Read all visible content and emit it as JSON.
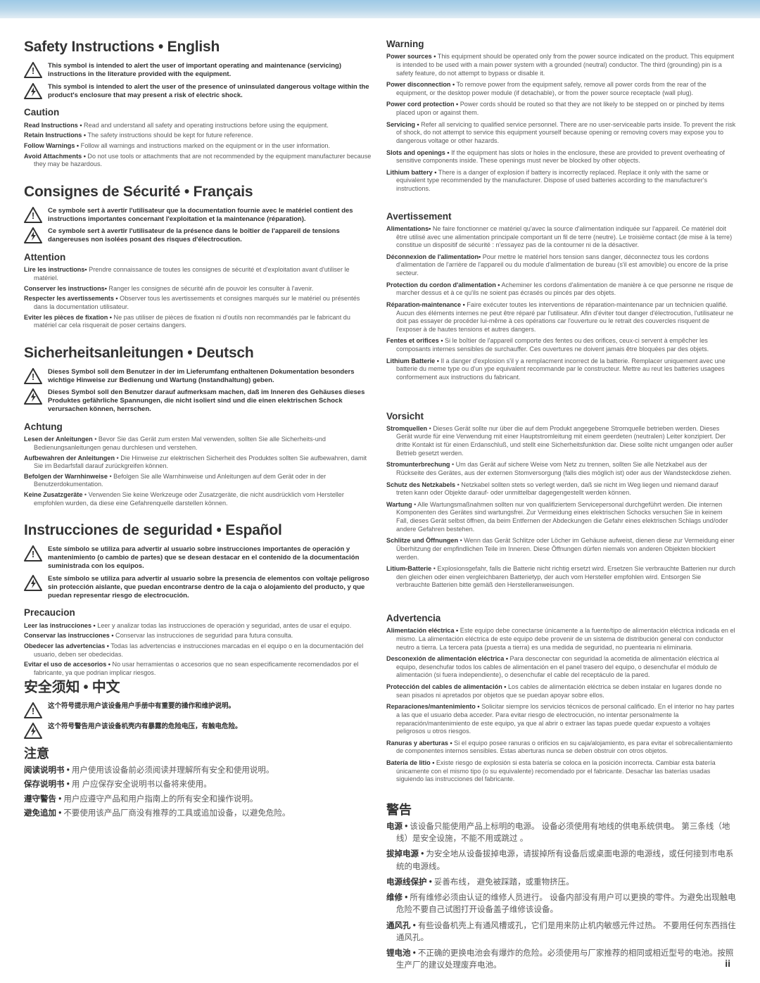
{
  "page_number": "ii",
  "left": {
    "sections": [
      {
        "heading": "Safety Instructions • English",
        "symbols": [
          "This symbol is intended to alert the user of important operating and maintenance (servicing) instructions in the literature provided with the equipment.",
          "This symbol is intended to alert the user of the presence of uninsulated dangerous voltage within the product's enclosure that may present a risk of electric shock."
        ],
        "sub": "Caution",
        "items": [
          {
            "b": "Read Instructions •",
            "t": " Read and understand all safety and operating instructions before using the equipment."
          },
          {
            "b": "Retain Instructions •",
            "t": " The safety instructions should be kept for future reference."
          },
          {
            "b": "Follow Warnings •",
            "t": " Follow all warnings and instructions marked on the equipment or in the user information."
          },
          {
            "b": "Avoid Attachments •",
            "t": " Do not use tools or attachments that are not recommended by the equipment manufacturer because they may be hazardous."
          }
        ]
      },
      {
        "heading": "Consignes de Sécurité • Français",
        "symbols": [
          "Ce symbole sert à avertir l'utilisateur que la documentation fournie avec le matériel contient des instructions importantes concernant l'exploitation et la maintenance (réparation).",
          "Ce symbole sert à avertir l'utilisateur de la présence dans le boîtier de l'appareil de  tensions dangereuses non isolées posant des risques d'électrocution."
        ],
        "sub": "Attention",
        "items": [
          {
            "b": "Lire les instructions•",
            "t": " Prendre connaissance de toutes les consignes de sécurité et d'exploitation avant d'utiliser le matériel."
          },
          {
            "b": "Conserver les instructions•",
            "t": " Ranger les consignes de sécurité afin de pouvoir les consulter à l'avenir."
          },
          {
            "b": "Respecter les avertissements •",
            "t": " Observer tous les avertissements et consignes marqués sur le matériel ou présentés dans la documentation utilisateur."
          },
          {
            "b": "Eviter les pièces de fixation •",
            "t": " Ne pas utiliser de pièces de fixation ni d'outils non recommandés par le fabricant du matériel car cela risquerait de poser certains dangers."
          }
        ]
      },
      {
        "heading": "Sicherheitsanleitungen • Deutsch",
        "symbols": [
          "Dieses Symbol soll dem Benutzer in der im Lieferumfang enthaltenen Dokumentation besonders wichtige Hinweise zur Bedienung und Wartung (Instandhaltung) geben.",
          "Dieses Symbol soll den Benutzer darauf aufmerksam machen, daß im Inneren des Gehäuses dieses Produktes gefährliche Spannungen, die nicht isoliert sind und die einen elektrischen Schock verursachen können, herrschen."
        ],
        "sub": "Achtung",
        "items": [
          {
            "b": "Lesen der Anleitungen",
            "t": " • Bevor Sie das Gerät zum ersten Mal verwenden, sollten Sie alle Sicherheits-und Bedienungsanleitungen genau durchlesen und verstehen."
          },
          {
            "b": "Aufbewahren der Anleitungen",
            "t": " • Die Hinweise zur elektrischen Sicherheit des Produktes sollten Sie aufbewahren, damit Sie im Bedarfsfall darauf zurückgreifen können."
          },
          {
            "b": "Befolgen der Warnhinweise",
            "t": " • Befolgen Sie alle Warnhinweise und Anleitungen auf dem Gerät oder in der Benutzerdokumentation."
          },
          {
            "b": "Keine Zusatzgeräte",
            "t": " • Verwenden Sie keine Werkzeuge oder Zusatzgeräte, die nicht ausdrücklich vom Hersteller empfohlen wurden, da diese eine Gefahrenquelle darstellen können."
          }
        ]
      },
      {
        "heading": "Instrucciones de seguridad • Español",
        "symbols": [
          "Este símbolo se utiliza para advertir al usuario sobre instrucciones importantes de operación y mantenimiento (o cambio de partes) que se desean destacar en el contenido de la documentación suministrada con los equipos.",
          "Este símbolo se utiliza para advertir al usuario sobre la presencia de elementos con voltaje peligroso sin protección aislante, que puedan encontrarse dentro de la caja o alojamiento del producto, y que puedan representar riesgo de electrocución."
        ],
        "sub": "Precaucion",
        "items": [
          {
            "b": "Leer las instrucciones •",
            "t": " Leer y analizar todas las instrucciones de operación y seguridad, antes de usar el equipo."
          },
          {
            "b": "Conservar las instrucciones •",
            "t": " Conservar las instrucciones de seguridad para futura consulta."
          },
          {
            "b": "Obedecer las advertencias •",
            "t": " Todas las advertencias e instrucciones marcadas en el equipo o en la documentación del usuario, deben ser obedecidas."
          },
          {
            "b": "Evitar el uso de accesorios •",
            "t": " No usar herramientas o accesorios que no sean especificamente recomendados por el fabricante, ya que podrian implicar riesgos."
          }
        ]
      }
    ],
    "cn": {
      "heading": "安全须知 • 中文",
      "symbols": [
        "这个符号提示用户该设备用户手册中有重要的操作和维护说明。",
        "这个符号警告用户该设备机壳内有暴露的危险电压，有触电危险。"
      ],
      "sub": "注意",
      "items": [
        {
          "b": "阅读说明书 •",
          "t": "  用户使用该设备前必须阅读并理解所有安全和使用说明。"
        },
        {
          "b": "保存说明书 •",
          "t": "  用  户应保存安全说明书以备将来使用。"
        },
        {
          "b": "遵守警告 •",
          "t": "  用户应遵守产品和用户指南上的所有安全和操作说明。"
        },
        {
          "b": "避免追加 •",
          "t": "  不要使用该产品厂商没有推荐的工具或追加设备，以避免危险。"
        }
      ]
    }
  },
  "right": {
    "sections": [
      {
        "sub": "Warning",
        "items": [
          {
            "b": "Power sources •",
            "t": " This equipment should be operated only from the power source indicated on the product. This equipment is intended to be used with a main power system with a grounded (neutral) conductor. The third (grounding) pin is a safety feature, do not attempt to bypass or disable it."
          },
          {
            "b": "Power disconnection •",
            "t": " To remove power from the equipment safely, remove all power cords from the rear of the equipment, or the desktop power module (if detachable), or from the power source receptacle (wall plug)."
          },
          {
            "b": "Power cord protection •",
            "t": " Power cords should be routed so that they are not likely to be stepped on or pinched by items placed upon or against them."
          },
          {
            "b": "Servicing •",
            "t": " Refer all servicing to qualified service personnel. There are no user-serviceable parts inside. To prevent the risk of shock, do not attempt to service this equipment yourself because opening or removing covers may expose you to dangerous voltage or other hazards."
          },
          {
            "b": "Slots and openings •",
            "t": " If the equipment has slots or holes in the enclosure, these are provided to prevent overheating of sensitive components inside. These openings must never be blocked by other objects."
          },
          {
            "b": "Lithium battery •",
            "t": " There is a danger of explosion if battery is incorrectly replaced. Replace it only with the same or equivalent type recommended by the manufacturer. Dispose of used batteries according to the manufacturer's instructions."
          }
        ]
      },
      {
        "sub": "Avertissement",
        "items": [
          {
            "b": "Alimentations•",
            "t": " Ne faire fonctionner ce matériel qu'avec la source d'alimentation indiquée sur l'appareil. Ce matériel doit être utilisé avec une alimentation principale comportant un fil de terre (neutre). Le troisième contact (de mise à la terre) constitue un dispositif de sécurité : n'essayez pas de la contourner ni de la désactiver."
          },
          {
            "b": "Déconnexion de l'alimentation•",
            "t": " Pour mettre le matériel hors tension sans danger, déconnectez tous les cordons d'alimentation de l'arrière de l'appareil ou du module d'alimentation de bureau (s'il est amovible) ou encore de la prise secteur."
          },
          {
            "b": "Protection du cordon d'alimentation •",
            "t": " Acheminer les cordons d'alimentation de manière à ce que personne ne risque de marcher dessus et à ce qu'ils ne soient pas écrasés ou pincés par des objets."
          },
          {
            "b": "Réparation-maintenance •",
            "t": " Faire exécuter toutes les interventions de réparation-maintenance par un technicien qualifié. Aucun des éléments internes ne peut être réparé par l'utilisateur. Afin d'éviter tout danger d'électrocution, l'utilisateur ne doit pas essayer de procéder lui-même à ces opérations car l'ouverture ou le retrait des couvercles risquent de l'exposer à de hautes tensions et autres dangers."
          },
          {
            "b": "Fentes et orifices •",
            "t": " Si le boîtier de l'appareil comporte des fentes ou des orifices, ceux-ci servent à empêcher les composants internes sensibles de surchauffer. Ces ouvertures ne doivent jamais être bloquées par des objets."
          },
          {
            "b": "Lithium Batterie •",
            "t": " Il a danger d'explosion s'il y a remplacment incorrect de la batterie. Remplacer uniquement avec une batterie du meme type ou d'un ype equivalent recommande par le constructeur. Mettre au reut les batteries usagees conformement aux instructions du fabricant."
          }
        ]
      },
      {
        "sub": "Vorsicht",
        "items": [
          {
            "b": "Stromquellen",
            "t": " • Dieses Gerät sollte nur über die auf dem Produkt angegebene Stromquelle betrieben werden. Dieses Gerät wurde für eine Verwendung mit einer Hauptstromleitung mit einem geerdeten (neutralen) Leiter konzipiert. Der dritte Kontakt ist für einen Erdanschluß, und stellt eine Sicherheitsfunktion dar. Diese sollte nicht umgangen oder außer Betrieb gesetzt werden."
          },
          {
            "b": "Stromunterbrechung",
            "t": " • Um das Gerät auf sichere Weise vom Netz zu trennen, sollten Sie alle Netzkabel aus der Rückseite des Gerätes, aus der externen Stomversorgung (falls dies möglich ist) oder aus der Wandsteckdose ziehen."
          },
          {
            "b": "Schutz des Netzkabels",
            "t": " • Netzkabel sollten stets so verlegt werden, daß sie nicht im Weg liegen und niemand darauf treten kann oder Objekte darauf- oder unmittelbar dagegengestellt werden können."
          },
          {
            "b": "Wartung",
            "t": " • Alle Wartungsmaßnahmen sollten nur von qualifiziertem Servicepersonal durchgeführt werden. Die internen Komponenten des Gerätes sind wartungsfrei. Zur Vermeidung eines elektrischen Schocks versuchen Sie in keinem Fall, dieses Gerät selbst öffnen, da beim Entfernen der Abdeckungen die Gefahr eines elektrischen Schlags und/oder andere Gefahren bestehen."
          },
          {
            "b": "Schlitze und Öffnungen",
            "t": " • Wenn das Gerät Schlitze oder Löcher im Gehäuse aufweist, dienen diese zur Vermeidung einer Überhitzung der empfindlichen Teile im Inneren. Diese Öffnungen dürfen niemals von anderen Objekten blockiert werden."
          },
          {
            "b": "Litium-Batterie",
            "t": " • Explosionsgefahr, falls die Batterie nicht richtig ersetzt wird. Ersetzen Sie verbrauchte Batterien nur durch den gleichen oder einen vergleichbaren Batterietyp, der auch vom Hersteller empfohlen wird. Entsorgen Sie verbrauchte Batterien bitte gemäß den Herstelleranweisungen."
          }
        ]
      },
      {
        "sub": "Advertencia",
        "items": [
          {
            "b": "Alimentación eléctrica •",
            "t": " Este equipo debe conectarse únicamente a la fuente/tipo de alimentación eléctrica indicada en el mismo. La alimentación eléctrica de este equipo debe provenir de un sistema de distribución general con conductor neutro a tierra. La tercera pata (puesta a tierra) es una medida de seguridad, no puentearia ni eliminaria."
          },
          {
            "b": "Desconexión de alimentación eléctrica •",
            "t": " Para desconectar con seguridad la acometida de alimentación eléctrica al equipo, desenchufar todos los cables de alimentación en el panel trasero del equipo, o desenchufar el módulo de alimentación (si fuera independiente), o desenchufar el cable del receptáculo de la pared."
          },
          {
            "b": "Protección del cables de alimentación •",
            "t": " Los cables de alimentación eléctrica se deben instalar en lugares donde no sean pisados ni apretados por objetos que se puedan apoyar sobre ellos."
          },
          {
            "b": "Reparaciones/mantenimiento •",
            "t": " Solicitar siempre los servicios técnicos de personal calificado. En el interior no hay partes a las que el usuario deba acceder. Para evitar riesgo de electrocución, no intentar personalmente la reparación/mantenimiento de este equipo, ya que al abrir o extraer las tapas puede quedar expuesto a voltajes peligrosos u otros riesgos."
          },
          {
            "b": "Ranuras y aberturas •",
            "t": " Si el equipo posee ranuras o orificios en su caja/alojamiento, es para evitar el sobrecalientamiento de componentes internos sensibles. Estas aberturas nunca se deben obstruir con otros objetos."
          },
          {
            "b": "Batería de litio •",
            "t": " Existe riesgo de explosión si esta batería se coloca en la posición incorrecta. Cambiar esta batería únicamente con el mismo tipo (o su equivalente) recomendado por el fabricante. Desachar las baterías usadas siguiendo las instrucciones del fabricante."
          }
        ]
      }
    ],
    "cn": {
      "sub": "警告",
      "items": [
        {
          "b": "电源 •",
          "t": " 该设备只能使用产品上标明的电源。   设备必须使用有地线的供电系统供电。   第三条线（地线）是安全设施，不能不用或跳过 。"
        },
        {
          "b": "拔掉电源 •",
          "t": " 为安全地从设备拔掉电源，请拔掉所有设备后或桌面电源的电源线，或任何接到市电系统的电源线。"
        },
        {
          "b": "电源线保护 •",
          "t": " 妥善布线，   避免被踩踏，或重物挤压。"
        },
        {
          "b": "维修 •",
          "t": "  所有维修必须由认证的维修人员进行。   设备内部没有用户可以更换的零件。为避免出现触电危险不要自己试图打开设备盖子维修该设备。"
        },
        {
          "b": "通风孔 •",
          "t": " 有些设备机壳上有通风槽或孔，它们是用来防止机内敏感元件过热。   不要用任何东西挡住通风孔。"
        },
        {
          "b": "锂电池 •",
          "t": "  不正确的更换电池会有爆炸的危险。必须使用与厂家推荐的相同或相近型号的电池。按照生产厂的建议处理废弃电池。"
        }
      ]
    }
  }
}
